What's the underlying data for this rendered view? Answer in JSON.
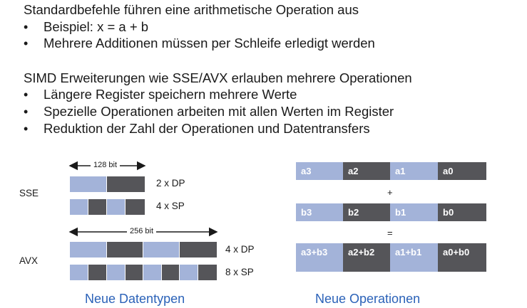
{
  "intro": {
    "heading": "Standardbefehle führen eine arithmetische Operation aus",
    "bullets": [
      "Beispiel: x = a + b",
      "Mehrere Additionen müssen per Schleife erledigt werden"
    ]
  },
  "simd": {
    "heading": "SIMD Erweiterungen wie SSE/AVX erlauben mehrere Operationen",
    "bullets": [
      "Längere Register speichern mehrere Werte",
      "Spezielle Operationen arbeiten mit allen Werten im Register",
      "Reduktion der Zahl der Operationen und Datentransfers"
    ]
  },
  "bullet_glyph": "•",
  "datatypes": {
    "sse_label": "SSE",
    "sse_width": "128 bit",
    "sse_dp": "2 x DP",
    "sse_sp": "4 x SP",
    "avx_label": "AVX",
    "avx_width": "256 bit",
    "avx_dp": "4 x DP",
    "avx_sp": "8 x SP",
    "caption": "Neue Datentypen",
    "colors": {
      "light": "#a3b3d9",
      "dark": "#555559"
    }
  },
  "operations": {
    "row_a": [
      "a3",
      "a2",
      "a1",
      "a0"
    ],
    "plus": "+",
    "row_b": [
      "b3",
      "b2",
      "b1",
      "b0"
    ],
    "equals": "=",
    "row_sum": [
      "a3+b3",
      "a2+b2",
      "a1+b1",
      "a0+b0"
    ],
    "caption": "Neue Operationen"
  }
}
